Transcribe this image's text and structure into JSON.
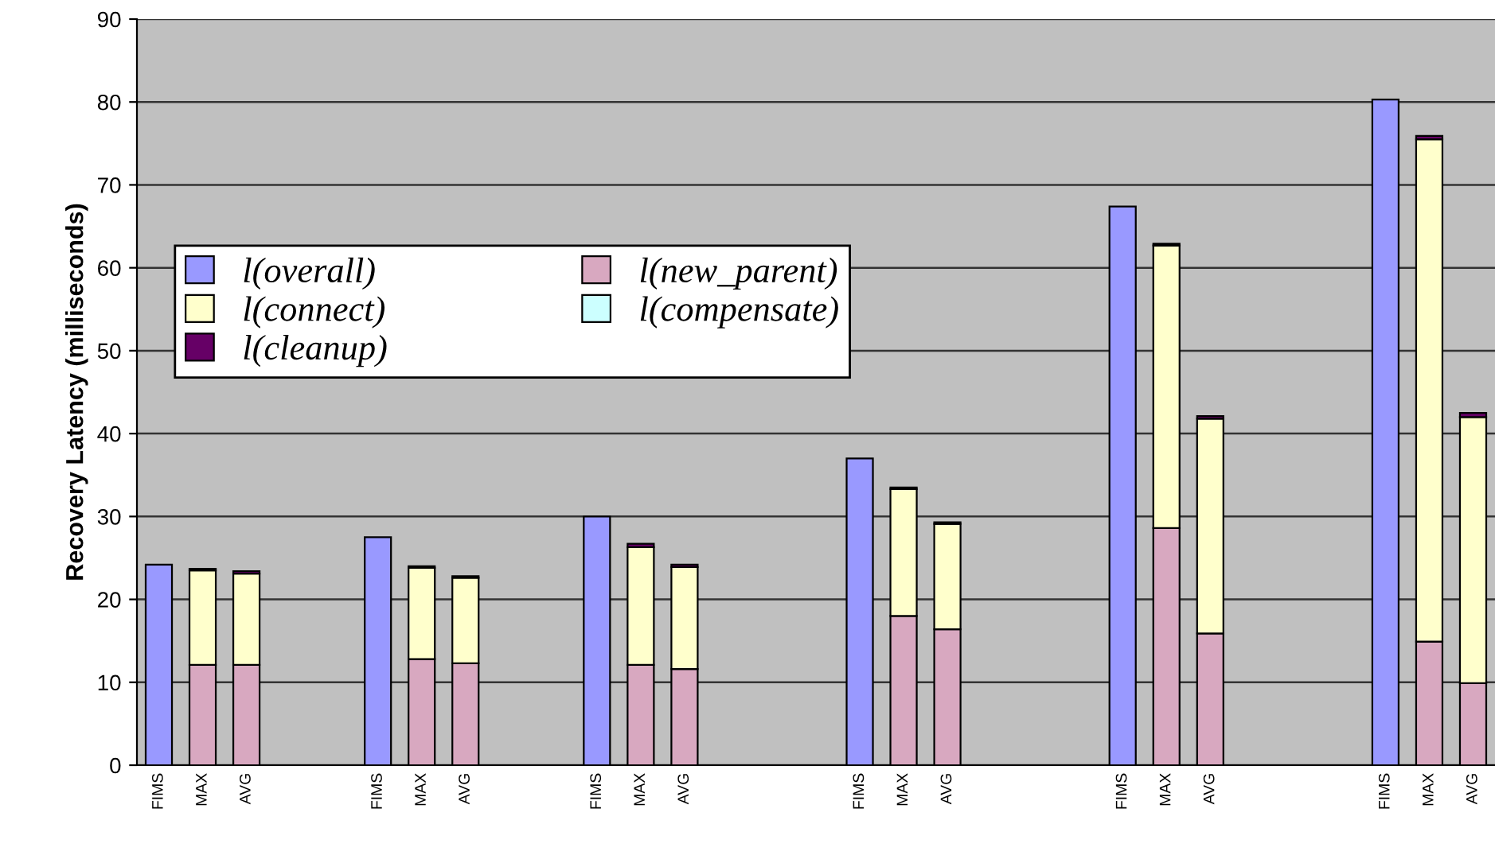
{
  "chart_data": {
    "type": "bar",
    "stacked": true,
    "ylabel": "Recovery Latency (milliseconds)",
    "categories": [
      "FIMS",
      "MAX",
      "AVG",
      null,
      null,
      "FIMS",
      "MAX",
      "AVG",
      null,
      null,
      "FIMS",
      "MAX",
      "AVG",
      null,
      null,
      null,
      "FIMS",
      "MAX",
      "AVG",
      null,
      null,
      null,
      "FIMS",
      "MAX",
      "AVG",
      null,
      null,
      null,
      "FIMS",
      "MAX",
      "AVG"
    ],
    "series": [
      {
        "name": "l(overall)",
        "color": "#9999ff",
        "values": [
          24.2,
          null,
          null,
          null,
          null,
          27.5,
          null,
          null,
          null,
          null,
          30.0,
          null,
          null,
          null,
          null,
          null,
          37.0,
          null,
          null,
          null,
          null,
          null,
          67.4,
          null,
          null,
          null,
          null,
          null,
          80.3,
          null,
          null
        ]
      },
      {
        "name": "l(new_parent)",
        "color": "#d8a8c0",
        "values": [
          null,
          12.1,
          12.1,
          null,
          null,
          null,
          12.8,
          12.3,
          null,
          null,
          null,
          12.1,
          11.6,
          null,
          null,
          null,
          null,
          18.0,
          16.4,
          null,
          null,
          null,
          null,
          28.6,
          15.9,
          null,
          null,
          null,
          null,
          14.9,
          9.9
        ]
      },
      {
        "name": "l(connect)",
        "color": "#ffffcc",
        "values": [
          null,
          11.4,
          11.0,
          null,
          null,
          null,
          11.0,
          10.3,
          null,
          null,
          null,
          14.2,
          12.3,
          null,
          null,
          null,
          null,
          15.3,
          12.7,
          null,
          null,
          null,
          null,
          34.1,
          25.9,
          null,
          null,
          null,
          null,
          60.6,
          32.1
        ]
      },
      {
        "name": "l(compensate)",
        "color": "#ccffff",
        "values": [
          null,
          null,
          null,
          null,
          null,
          null,
          null,
          null,
          null,
          null,
          null,
          null,
          null,
          null,
          null,
          null,
          null,
          null,
          null,
          null,
          null,
          null,
          null,
          null,
          null,
          null,
          null,
          null,
          null,
          null,
          null
        ]
      },
      {
        "name": "l(cleanup)",
        "color": "#660066",
        "values": [
          null,
          0.2,
          0.3,
          null,
          null,
          null,
          0.2,
          0.2,
          null,
          null,
          null,
          0.4,
          0.3,
          null,
          null,
          null,
          null,
          0.2,
          0.2,
          null,
          null,
          null,
          null,
          0.2,
          0.3,
          null,
          null,
          null,
          null,
          0.4,
          0.5
        ]
      }
    ],
    "ylim": [
      0,
      90
    ],
    "yticks": [
      0,
      10,
      20,
      30,
      40,
      50,
      60,
      70,
      80,
      90
    ],
    "grid": "y",
    "legend": "top left"
  }
}
